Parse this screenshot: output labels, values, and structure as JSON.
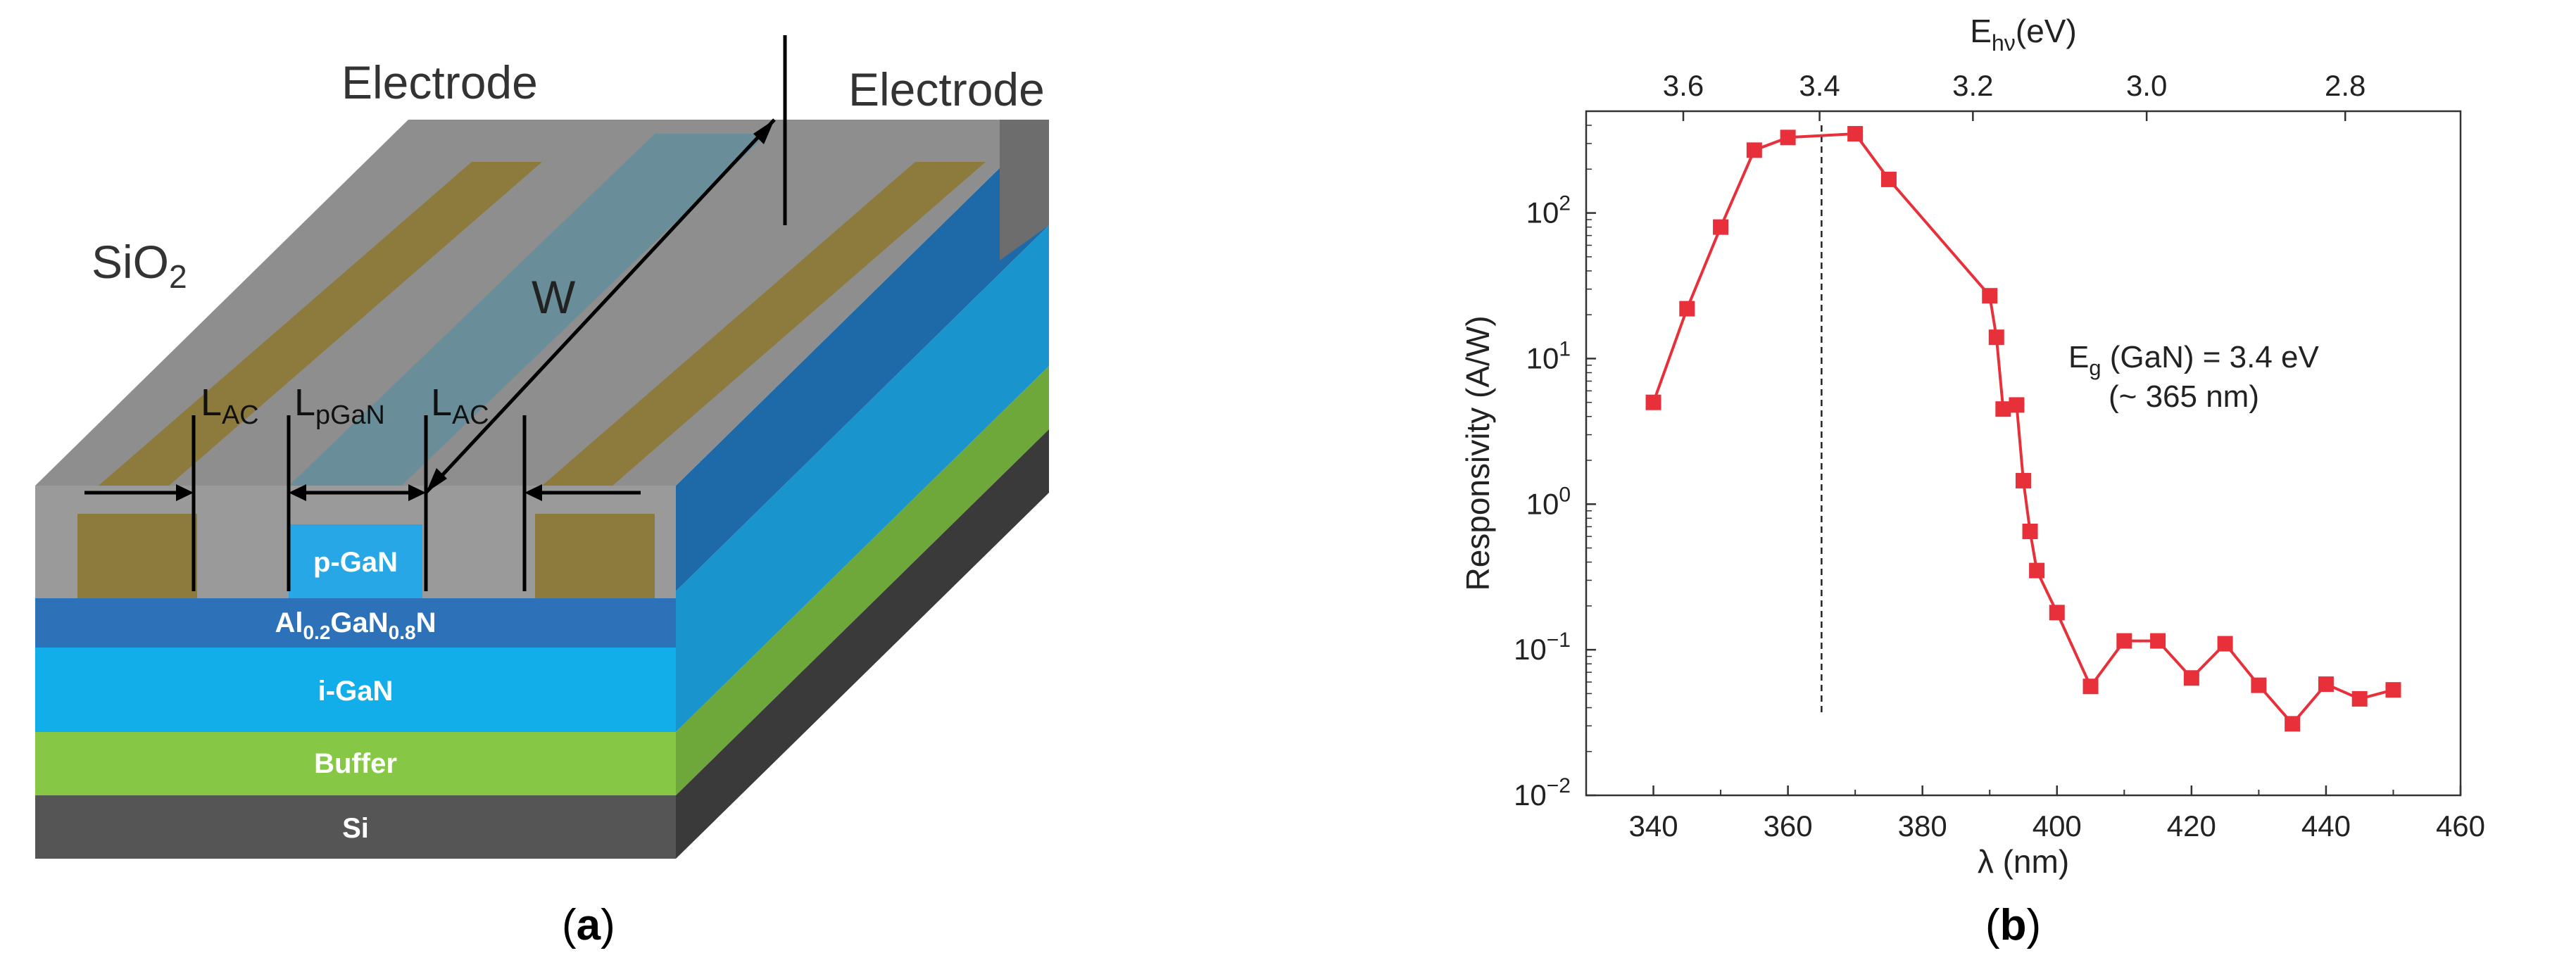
{
  "panel_a": {
    "caption": "(a)",
    "caption_letter": "a",
    "labels": {
      "electrode_left": "Electrode",
      "electrode_right": "Electrode",
      "sio2": "SiO",
      "sio2_sub": "2",
      "width": "W",
      "l_ac_left": "L",
      "l_ac_left_sub": "AC",
      "l_pgan": "L",
      "l_pgan_sub": "pGaN",
      "l_ac_right": "L",
      "l_ac_right_sub": "AC"
    },
    "layers": [
      {
        "name": "p-GaN",
        "color": "#27a7e6"
      },
      {
        "name": "Al",
        "sub1": "0.2",
        "mid": "GaN",
        "sub2": "0.8",
        "tail": "N",
        "color": "#2d72b8"
      },
      {
        "name": "i-GaN",
        "color": "#12aeea"
      },
      {
        "name": "Buffer",
        "color": "#86c846"
      },
      {
        "name": "Si",
        "color": "#4b4b4b"
      }
    ],
    "colors": {
      "electrode": "#8c7b3c",
      "sio2": "#8a8a8a",
      "channel": "#6a8e99"
    }
  },
  "panel_b": {
    "caption": "(b)",
    "caption_letter": "b",
    "annotation_line1_main": "E",
    "annotation_line1_sub": "g",
    "annotation_line1_rest": " (GaN) = 3.4 eV",
    "annotation_line2": "(~ 365 nm)",
    "bandgap_marker_nm": 365,
    "top_axis_label_main": "E",
    "top_axis_label_sub": "hν",
    "top_axis_label_rest": "(eV)",
    "chart_data": {
      "type": "line",
      "xlabel": "λ (nm)",
      "ylabel": "Responsivity (A/W)",
      "xlim": [
        330,
        460
      ],
      "ylim": [
        0.01,
        500
      ],
      "y_scale": "log",
      "x_ticks": [
        340,
        360,
        380,
        400,
        420,
        440,
        460
      ],
      "y_ticks": [
        {
          "value": 0.01,
          "base": "10",
          "exp": "−2"
        },
        {
          "value": 0.1,
          "base": "10",
          "exp": "−1"
        },
        {
          "value": 1,
          "base": "10",
          "exp": "0"
        },
        {
          "value": 10,
          "base": "10",
          "exp": "1"
        },
        {
          "value": 100,
          "base": "10",
          "exp": "2"
        }
      ],
      "top_axis_ticks_ev": [
        "3.6",
        "3.4",
        "3.2",
        "3.0",
        "2.8"
      ],
      "marker_color": "#e8303a",
      "series": [
        {
          "x": [
            340,
            345,
            350,
            355,
            360,
            370,
            375,
            390,
            391,
            392,
            394,
            395,
            396,
            397,
            400,
            405,
            410,
            415,
            420,
            425,
            430,
            435,
            440,
            445,
            450
          ],
          "y": [
            5,
            22,
            80,
            270,
            330,
            350,
            170,
            27,
            14,
            4.5,
            4.8,
            1.45,
            0.65,
            0.35,
            0.18,
            0.056,
            0.115,
            0.115,
            0.064,
            0.11,
            0.057,
            0.031,
            0.058,
            0.046,
            0.053
          ]
        }
      ]
    }
  }
}
